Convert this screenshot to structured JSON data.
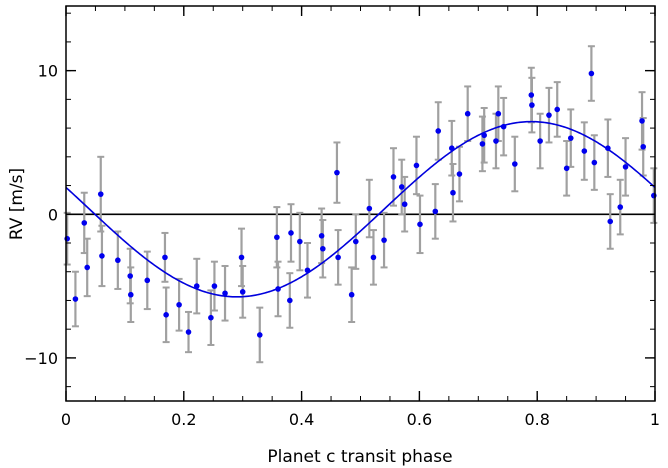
{
  "chart_data": {
    "type": "scatter",
    "xlabel": "Planet c transit phase",
    "ylabel": "RV [m/s]",
    "xlim": [
      0,
      1
    ],
    "ylim": [
      -13,
      14.5
    ],
    "x_ticks": [
      0,
      0.2,
      0.4,
      0.6,
      0.8,
      1
    ],
    "x_tick_labels": [
      "0",
      "0.2",
      "0.4",
      "0.6",
      "0.8",
      "1"
    ],
    "y_ticks": [
      -10,
      0,
      10
    ],
    "y_tick_labels": [
      "−10",
      "0",
      "10"
    ],
    "zero_line": true,
    "grid": false,
    "colors": {
      "points": "#0000ee",
      "error_bars": "#a0a0a0",
      "model": "#0000dd",
      "axes": "#000000"
    },
    "model_curve": {
      "description_shown": false,
      "amplitude": 6.1,
      "phase_of_minimum": 0.23,
      "phase_of_maximum": 0.79
    },
    "series": [
      {
        "points": [
          {
            "x": 0.002,
            "y": -1.7,
            "err": 1.8
          },
          {
            "x": 0.016,
            "y": -5.9,
            "err": 1.9
          },
          {
            "x": 0.031,
            "y": -0.6,
            "err": 2.1
          },
          {
            "x": 0.036,
            "y": -3.7,
            "err": 2.0
          },
          {
            "x": 0.059,
            "y": 1.4,
            "err": 2.6
          },
          {
            "x": 0.061,
            "y": -2.9,
            "err": 2.1
          },
          {
            "x": 0.088,
            "y": -3.2,
            "err": 2.0
          },
          {
            "x": 0.109,
            "y": -4.3,
            "err": 1.9
          },
          {
            "x": 0.11,
            "y": -5.6,
            "err": 1.9
          },
          {
            "x": 0.138,
            "y": -4.6,
            "err": 2.0
          },
          {
            "x": 0.168,
            "y": -3.0,
            "err": 1.7
          },
          {
            "x": 0.17,
            "y": -7.0,
            "err": 1.9
          },
          {
            "x": 0.192,
            "y": -6.3,
            "err": 1.8
          },
          {
            "x": 0.208,
            "y": -8.2,
            "err": 1.4
          },
          {
            "x": 0.222,
            "y": -5.0,
            "err": 1.9
          },
          {
            "x": 0.246,
            "y": -7.2,
            "err": 1.9
          },
          {
            "x": 0.252,
            "y": -5.0,
            "err": 1.7
          },
          {
            "x": 0.27,
            "y": -5.5,
            "err": 1.9
          },
          {
            "x": 0.298,
            "y": -3.0,
            "err": 2.0
          },
          {
            "x": 0.3,
            "y": -5.4,
            "err": 1.8
          },
          {
            "x": 0.329,
            "y": -8.4,
            "err": 1.9
          },
          {
            "x": 0.358,
            "y": -1.6,
            "err": 2.1
          },
          {
            "x": 0.36,
            "y": -5.2,
            "err": 1.9
          },
          {
            "x": 0.38,
            "y": -6.0,
            "err": 1.9
          },
          {
            "x": 0.382,
            "y": -1.3,
            "err": 2.0
          },
          {
            "x": 0.397,
            "y": -1.9,
            "err": 2.0
          },
          {
            "x": 0.41,
            "y": -3.9,
            "err": 1.9
          },
          {
            "x": 0.434,
            "y": -1.5,
            "err": 1.9
          },
          {
            "x": 0.436,
            "y": -2.4,
            "err": 2.0
          },
          {
            "x": 0.46,
            "y": 2.9,
            "err": 2.1
          },
          {
            "x": 0.462,
            "y": -3.0,
            "err": 1.9
          },
          {
            "x": 0.485,
            "y": -5.6,
            "err": 1.9
          },
          {
            "x": 0.492,
            "y": -1.9,
            "err": 1.9
          },
          {
            "x": 0.515,
            "y": 0.4,
            "err": 2.0
          },
          {
            "x": 0.522,
            "y": -3.0,
            "err": 1.9
          },
          {
            "x": 0.54,
            "y": -1.8,
            "err": 1.9
          },
          {
            "x": 0.556,
            "y": 2.6,
            "err": 2.0
          },
          {
            "x": 0.57,
            "y": 1.9,
            "err": 1.9
          },
          {
            "x": 0.575,
            "y": 0.7,
            "err": 1.9
          },
          {
            "x": 0.595,
            "y": 3.4,
            "err": 2.0
          },
          {
            "x": 0.601,
            "y": -0.7,
            "err": 2.0
          },
          {
            "x": 0.627,
            "y": 0.2,
            "err": 1.9
          },
          {
            "x": 0.632,
            "y": 5.8,
            "err": 2.0
          },
          {
            "x": 0.655,
            "y": 4.6,
            "err": 1.9
          },
          {
            "x": 0.657,
            "y": 1.5,
            "err": 2.0
          },
          {
            "x": 0.668,
            "y": 2.8,
            "err": 1.9
          },
          {
            "x": 0.682,
            "y": 7.0,
            "err": 1.9
          },
          {
            "x": 0.707,
            "y": 4.9,
            "err": 1.9
          },
          {
            "x": 0.71,
            "y": 5.5,
            "err": 1.9
          },
          {
            "x": 0.73,
            "y": 5.1,
            "err": 1.9
          },
          {
            "x": 0.734,
            "y": 7.0,
            "err": 1.9
          },
          {
            "x": 0.743,
            "y": 6.1,
            "err": 2.0
          },
          {
            "x": 0.762,
            "y": 3.5,
            "err": 1.9
          },
          {
            "x": 0.79,
            "y": 8.3,
            "err": 1.9
          },
          {
            "x": 0.791,
            "y": 7.6,
            "err": 1.9
          },
          {
            "x": 0.805,
            "y": 5.1,
            "err": 1.9
          },
          {
            "x": 0.82,
            "y": 6.9,
            "err": 1.9
          },
          {
            "x": 0.834,
            "y": 7.3,
            "err": 1.9
          },
          {
            "x": 0.85,
            "y": 3.2,
            "err": 1.9
          },
          {
            "x": 0.857,
            "y": 5.3,
            "err": 2.0
          },
          {
            "x": 0.88,
            "y": 4.4,
            "err": 2.0
          },
          {
            "x": 0.892,
            "y": 9.8,
            "err": 1.9
          },
          {
            "x": 0.897,
            "y": 3.6,
            "err": 1.9
          },
          {
            "x": 0.92,
            "y": 4.6,
            "err": 2.0
          },
          {
            "x": 0.924,
            "y": -0.5,
            "err": 1.9
          },
          {
            "x": 0.941,
            "y": 0.5,
            "err": 1.9
          },
          {
            "x": 0.95,
            "y": 3.3,
            "err": 2.0
          },
          {
            "x": 0.978,
            "y": 6.5,
            "err": 2.0
          },
          {
            "x": 0.98,
            "y": 4.7,
            "err": 2.0
          },
          {
            "x": 0.998,
            "y": 1.3,
            "err": 1.9
          }
        ]
      }
    ]
  }
}
